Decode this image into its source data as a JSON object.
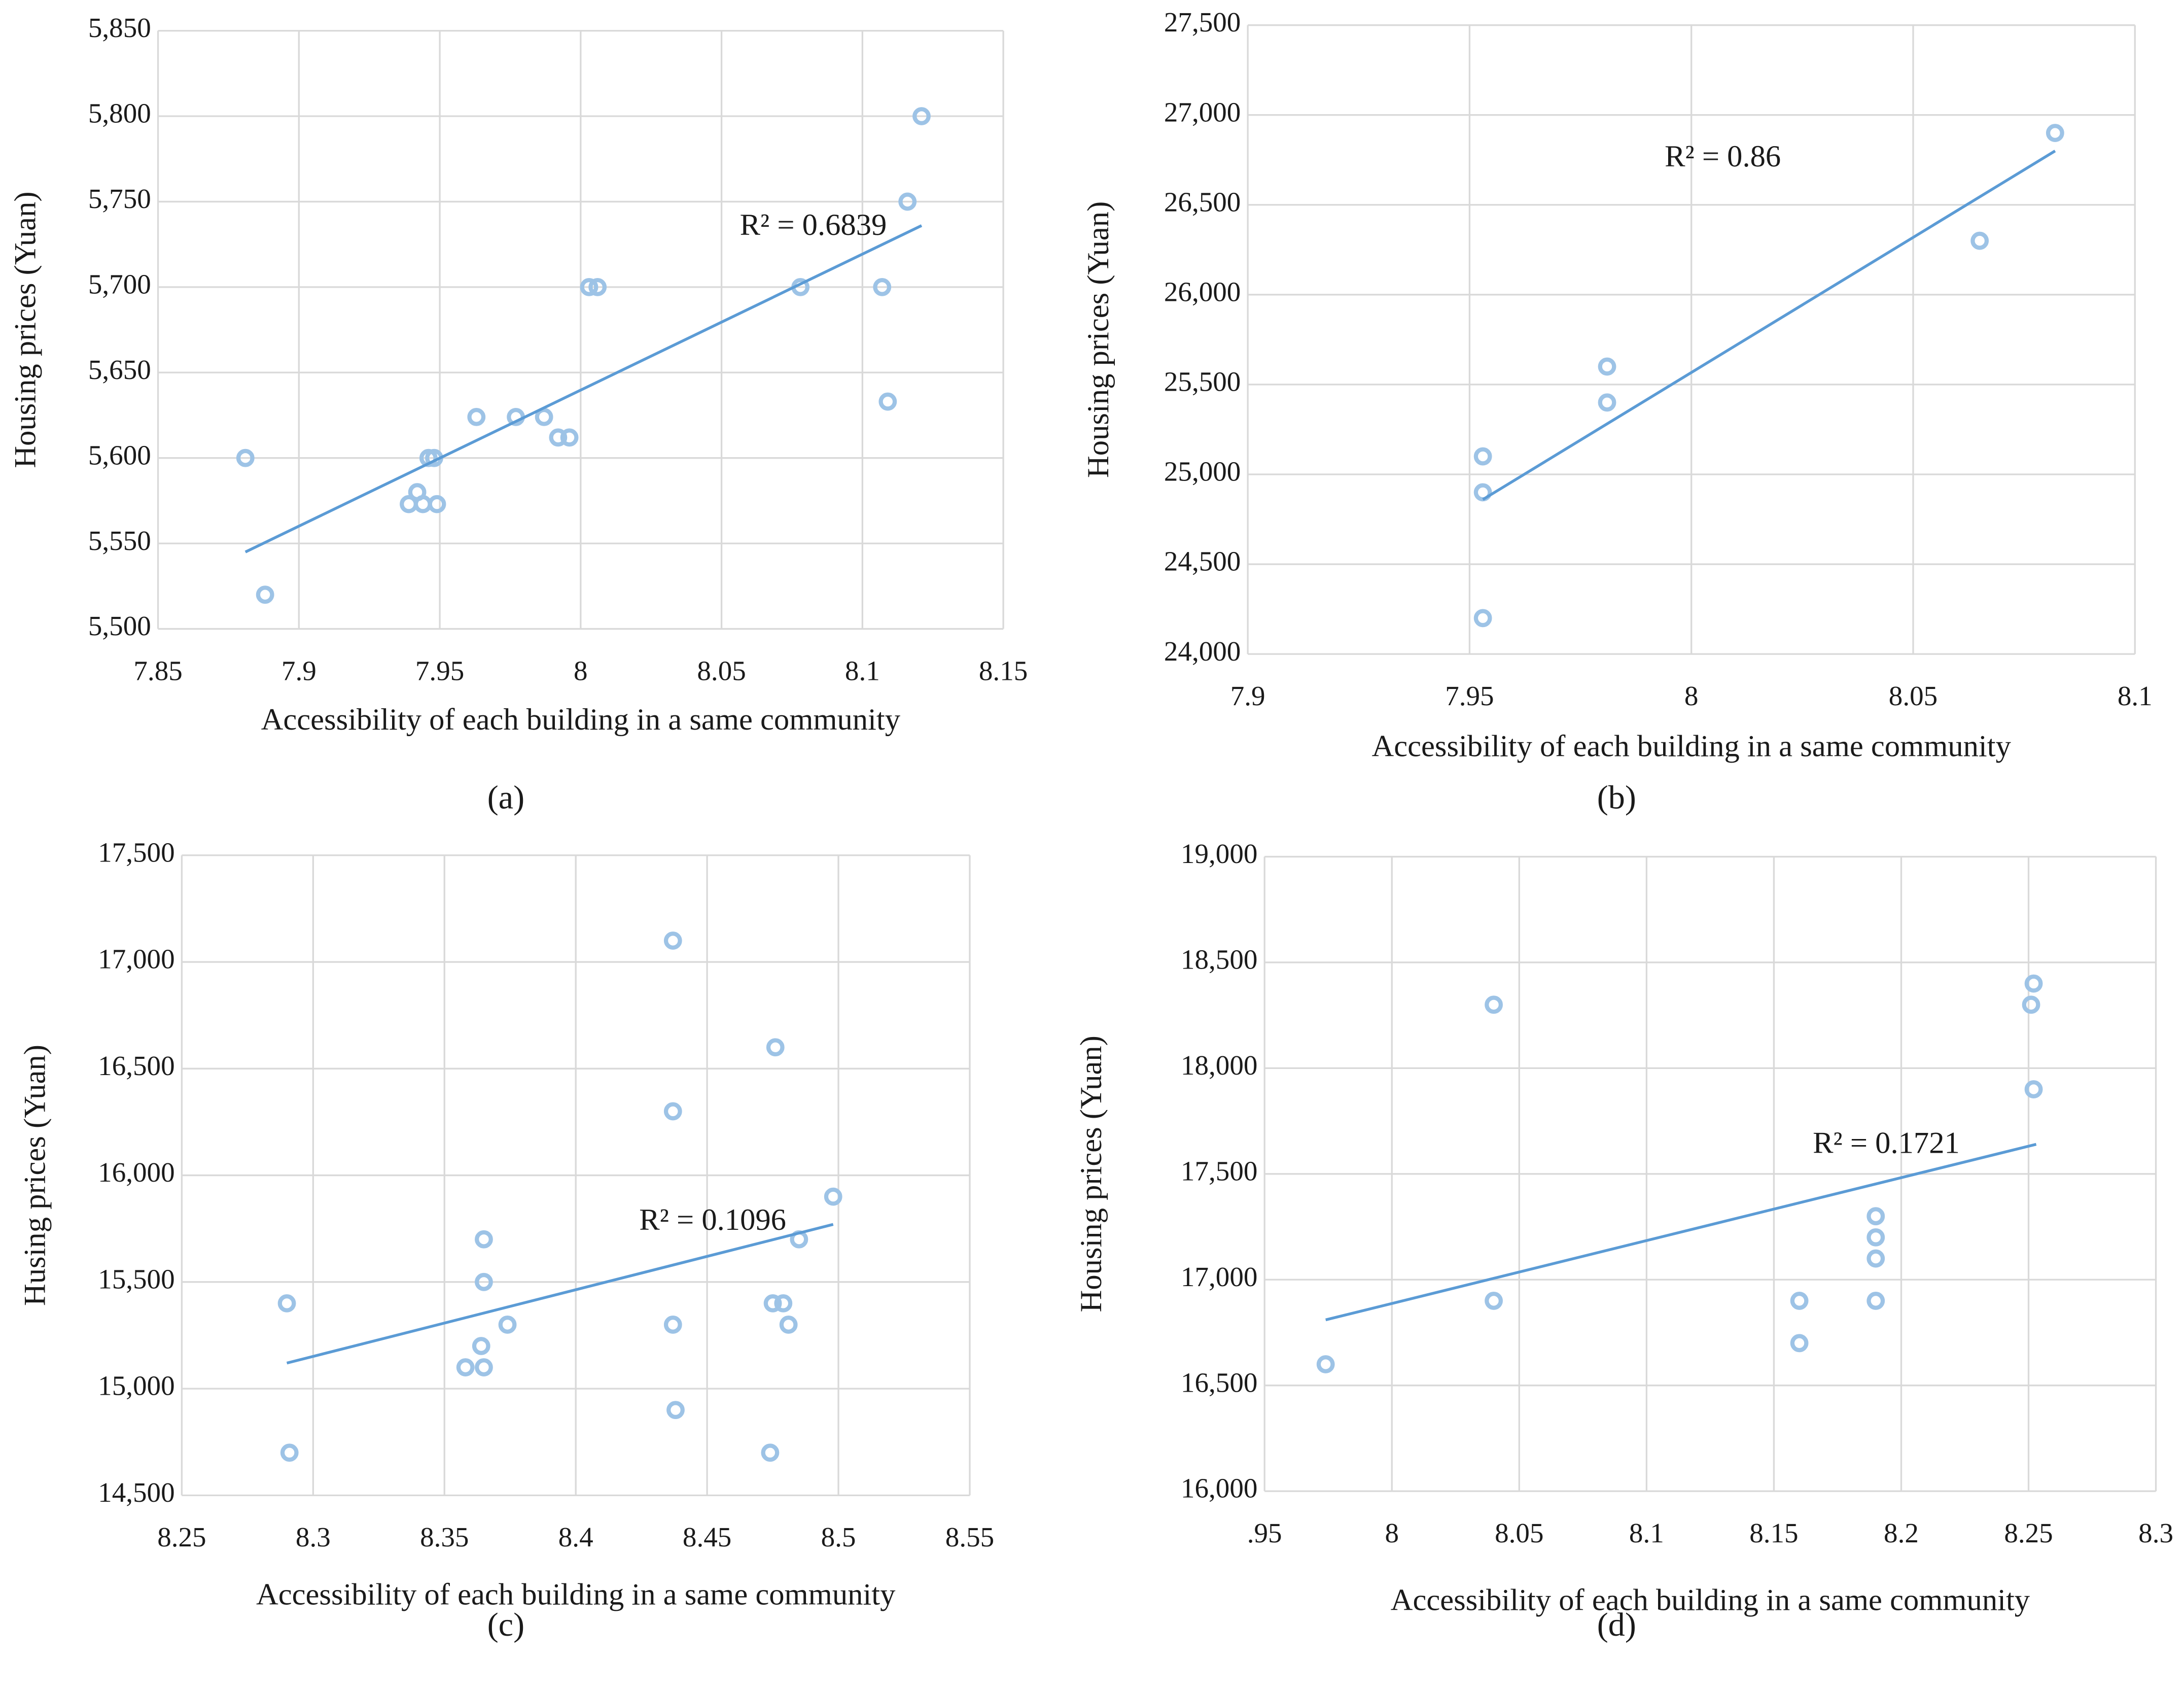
{
  "chart_data": [
    {
      "type": "scatter",
      "label": "(a)",
      "xlabel": "Accessibility of each building in a same community",
      "ylabel": "Housing prices (Yuan)",
      "annotation": "R² = 0.6839",
      "color": "#9dc3e6",
      "trend_color": "#5b9bd5",
      "grid": true,
      "xlim": [
        7.85,
        8.15
      ],
      "xticks": [
        7.85,
        7.9,
        7.95,
        8,
        8.05,
        8.1,
        8.15
      ],
      "ylim": [
        5500,
        5850
      ],
      "yticks": [
        {
          "value": 5500,
          "label": "5,500"
        },
        {
          "value": 5550,
          "label": "5,550"
        },
        {
          "value": 5600,
          "label": "5,600"
        },
        {
          "value": 5650,
          "label": "5,650"
        },
        {
          "value": 5700,
          "label": "5,700"
        },
        {
          "value": 5750,
          "label": "5,750"
        },
        {
          "value": 5800,
          "label": "5,800"
        },
        {
          "value": 5850,
          "label": "5,850"
        }
      ],
      "x": [
        7.881,
        7.888,
        7.939,
        7.942,
        7.944,
        7.949,
        7.946,
        7.948,
        7.963,
        7.977,
        7.987,
        7.992,
        7.996,
        8.003,
        8.006,
        8.078,
        8.107,
        8.109,
        8.116,
        8.121
      ],
      "values": [
        5600,
        5520,
        5573,
        5580,
        5573,
        5573,
        5600,
        5600,
        5624,
        5624,
        5624,
        5612,
        5612,
        5700,
        5700,
        5700,
        5700,
        5633,
        5750,
        5800
      ],
      "trendline": {
        "x": [
          7.881,
          8.121
        ],
        "y": [
          5545,
          5736
        ]
      }
    },
    {
      "type": "scatter",
      "label": "(b)",
      "xlabel": "Accessibility of each building in a same community",
      "ylabel": "Housing prices (Yuan)",
      "annotation": "R² = 0.86",
      "color": "#9dc3e6",
      "trend_color": "#5b9bd5",
      "grid": true,
      "xlim": [
        7.9,
        8.1
      ],
      "xticks": [
        7.9,
        7.95,
        8,
        8.05,
        8.1
      ],
      "ylim": [
        24000,
        27500
      ],
      "yticks": [
        {
          "value": 24000,
          "label": "24,000"
        },
        {
          "value": 24500,
          "label": "24,500"
        },
        {
          "value": 25000,
          "label": "25,000"
        },
        {
          "value": 25500,
          "label": "25,500"
        },
        {
          "value": 26000,
          "label": "26,000"
        },
        {
          "value": 26500,
          "label": "26,500"
        },
        {
          "value": 27000,
          "label": "27,000"
        },
        {
          "value": 27500,
          "label": "27,500"
        }
      ],
      "x": [
        7.953,
        7.953,
        7.953,
        7.981,
        7.981,
        8.065,
        8.082
      ],
      "values": [
        25100,
        24900,
        24200,
        25600,
        25400,
        26300,
        26900
      ],
      "trendline": {
        "x": [
          7.953,
          8.082
        ],
        "y": [
          24860,
          26800
        ]
      }
    },
    {
      "type": "scatter",
      "label": "(c)",
      "xlabel": "Accessibility of each building in a same community",
      "ylabel": "Husing prices (Yuan)",
      "annotation": "R² = 0.1096",
      "color": "#9dc3e6",
      "trend_color": "#5b9bd5",
      "grid": true,
      "xlim": [
        8.25,
        8.55
      ],
      "xticks": [
        8.25,
        8.3,
        8.35,
        8.4,
        8.45,
        8.5,
        8.55
      ],
      "ylim": [
        14500,
        17500
      ],
      "yticks": [
        {
          "value": 14500,
          "label": "14,500"
        },
        {
          "value": 15000,
          "label": "15,000"
        },
        {
          "value": 15500,
          "label": "15,500"
        },
        {
          "value": 16000,
          "label": "16,000"
        },
        {
          "value": 16500,
          "label": "16,500"
        },
        {
          "value": 17000,
          "label": "17,000"
        },
        {
          "value": 17500,
          "label": "17,500"
        }
      ],
      "x": [
        8.29,
        8.291,
        8.358,
        8.365,
        8.364,
        8.365,
        8.365,
        8.374,
        8.437,
        8.437,
        8.437,
        8.438,
        8.476,
        8.475,
        8.479,
        8.481,
        8.485,
        8.498,
        8.474
      ],
      "values": [
        15400,
        14700,
        15100,
        15100,
        15200,
        15500,
        15700,
        15300,
        17100,
        16300,
        15300,
        14900,
        16600,
        15400,
        15400,
        15300,
        15700,
        15900,
        14700
      ],
      "trendline": {
        "x": [
          8.29,
          8.498
        ],
        "y": [
          15120,
          15770
        ]
      }
    },
    {
      "type": "scatter",
      "label": "(d)",
      "xlabel": "Accessibility of each building in a same community",
      "ylabel": "Housing prices (Yuan)",
      "annotation": "R² = 0.1721",
      "color": "#9dc3e6",
      "trend_color": "#5b9bd5",
      "grid": true,
      "xlim": [
        7.95,
        8.3
      ],
      "xticks": [
        {
          "value": 7.95,
          "label": ".95"
        },
        8,
        8.05,
        8.1,
        8.15,
        8.2,
        8.25,
        8.3
      ],
      "ylim": [
        16000,
        19000
      ],
      "yticks": [
        {
          "value": 16000,
          "label": "16,000"
        },
        {
          "value": 16500,
          "label": "16,500"
        },
        {
          "value": 17000,
          "label": "17,000"
        },
        {
          "value": 17500,
          "label": "17,500"
        },
        {
          "value": 18000,
          "label": "18,000"
        },
        {
          "value": 18500,
          "label": "18,500"
        },
        {
          "value": 19000,
          "label": "19,000"
        }
      ],
      "x": [
        7.974,
        8.04,
        8.04,
        8.16,
        8.16,
        8.19,
        8.19,
        8.19,
        8.19,
        8.252,
        8.251,
        8.252
      ],
      "values": [
        16600,
        18300,
        16900,
        16900,
        16700,
        17300,
        17200,
        17100,
        16900,
        18400,
        18300,
        17900
      ],
      "trendline": {
        "x": [
          7.974,
          8.253
        ],
        "y": [
          16810,
          17640
        ]
      }
    }
  ]
}
